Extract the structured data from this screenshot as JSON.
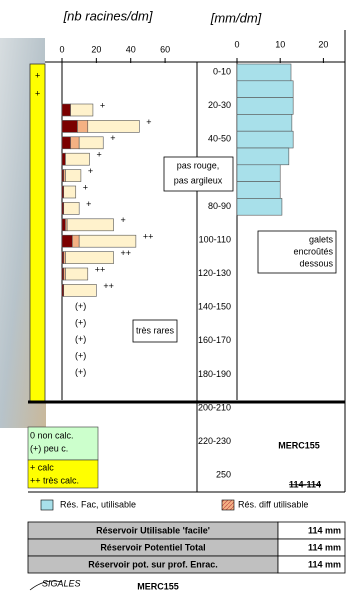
{
  "chart_data": [
    {
      "type": "bar",
      "orientation": "horizontal",
      "stacked": true,
      "x_label": "[nb racines/dm]",
      "xlim": [
        0,
        78
      ],
      "xticks": [
        0,
        20,
        40,
        60
      ],
      "series": [
        {
          "color": "#7b0000",
          "values": [
            5,
            9,
            5,
            2,
            1,
            1,
            1,
            2,
            6,
            1,
            1,
            1,
            null,
            null,
            null,
            null,
            null
          ]
        },
        {
          "color": "#f4b183",
          "values": [
            0,
            6,
            5,
            0,
            1,
            0,
            0,
            1,
            4,
            1,
            1,
            0,
            null,
            null,
            null,
            null,
            null
          ]
        },
        {
          "color": "#fff2cc",
          "values": [
            13,
            30,
            14,
            14,
            9,
            7,
            9,
            27,
            33,
            28,
            13,
            19,
            null,
            null,
            null,
            null,
            null
          ]
        }
      ],
      "calc_labels": [
        "+",
        "+",
        "+",
        "+",
        "+",
        "+",
        "+",
        "+",
        "++",
        "++",
        "++",
        "++",
        "(+)",
        "(+)",
        "(+)",
        "(+)",
        "(+)"
      ]
    },
    {
      "type": "bar",
      "orientation": "horizontal",
      "x_label": "[mm/dm]",
      "xlim": [
        0,
        25
      ],
      "xticks": [
        0,
        10,
        20
      ],
      "color": "#a8e0ea",
      "values": [
        12.5,
        13,
        13,
        12.7,
        13,
        12,
        10,
        10,
        10.4
      ]
    }
  ],
  "depth_labels": [
    "0-10",
    "20-30",
    "40-50",
    "60-70",
    "80-90",
    "100-110",
    "120-130",
    "140-150",
    "160-170",
    "180-190",
    "200-210",
    "220-230",
    "250"
  ],
  "calc_column": [
    "+",
    "+"
  ],
  "annotations": [
    {
      "lines": [
        "pas rouge,",
        "pas argileux"
      ]
    },
    {
      "lines": [
        "très rares"
      ]
    },
    {
      "lines": [
        "galets",
        "encroûtés",
        "dessous"
      ]
    }
  ],
  "calc_legend": [
    "0 non calc.",
    "(+) peu c.",
    "+ calc",
    "++ très calc."
  ],
  "site": "MERC155",
  "code": "114-114",
  "legend": [
    {
      "name": "Rés. Fac, utilisable",
      "color": "#a8e0ea"
    },
    {
      "name": "Rés. diff utilisable",
      "color": "#f4b183"
    }
  ],
  "table": {
    "rows": [
      [
        "Réservoir Utilisable 'facile'",
        "114 mm"
      ],
      [
        "Réservoir Potentiel Total",
        "114 mm"
      ],
      [
        "Réservoir pot. sur prof. Enrac.",
        "114 mm"
      ]
    ]
  },
  "footer": {
    "logo": "SIGALES",
    "site": "MERC155"
  }
}
